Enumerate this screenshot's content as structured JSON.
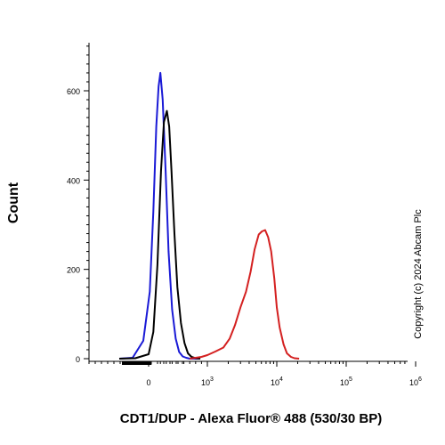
{
  "chart_data": {
    "type": "line",
    "title": "",
    "xlabel": "CDT1/DUP - Alexa Fluor® 488 (530/30 BP)",
    "ylabel": "Count",
    "x_scale": "biexponential",
    "xlim": [
      -400,
      1000000
    ],
    "ylim": [
      0,
      700
    ],
    "y_ticks": [
      0,
      200,
      400,
      600
    ],
    "y_tick_labels": [
      "0",
      "200",
      "400",
      "600"
    ],
    "x_ticks": [
      0,
      1000,
      10000,
      100000,
      1000000
    ],
    "x_tick_labels": [
      {
        "base": "0",
        "exp": ""
      },
      {
        "base": "10",
        "exp": "3"
      },
      {
        "base": "10",
        "exp": "4"
      },
      {
        "base": "10",
        "exp": "5"
      },
      {
        "base": "10",
        "exp": "6"
      }
    ],
    "legend": "none",
    "series": [
      {
        "color": "#1a1ad6",
        "x": [
          -220,
          -120,
          -40,
          20,
          80,
          130,
          170,
          200,
          240,
          290,
          340,
          400,
          460,
          520,
          580,
          640,
          700,
          780,
          860
        ],
        "y": [
          0,
          2,
          40,
          150,
          330,
          520,
          610,
          640,
          580,
          420,
          240,
          110,
          45,
          15,
          5,
          2,
          0,
          0,
          0
        ]
      },
      {
        "color": "#000000",
        "x": [
          -220,
          -100,
          0,
          80,
          150,
          210,
          260,
          310,
          350,
          390,
          440,
          490,
          550,
          610,
          670,
          730,
          800,
          880
        ],
        "y": [
          0,
          1,
          10,
          60,
          210,
          420,
          530,
          555,
          520,
          420,
          280,
          160,
          80,
          35,
          12,
          4,
          1,
          0
        ]
      },
      {
        "color": "#d42020",
        "x": [
          700,
          900,
          1000,
          1300,
          1700,
          2100,
          2500,
          3000,
          3600,
          4200,
          4800,
          5500,
          6100,
          6800,
          7500,
          8300,
          9200,
          10000,
          11000,
          12500,
          14000,
          16000,
          18000,
          21000
        ],
        "y": [
          0,
          4,
          8,
          16,
          25,
          45,
          75,
          115,
          150,
          195,
          245,
          278,
          285,
          288,
          272,
          240,
          180,
          115,
          70,
          32,
          12,
          4,
          1,
          0
        ]
      }
    ]
  },
  "copyright": "Copyright (c) 2024 Abcam Plc",
  "colors": {
    "axis": "#000000"
  }
}
